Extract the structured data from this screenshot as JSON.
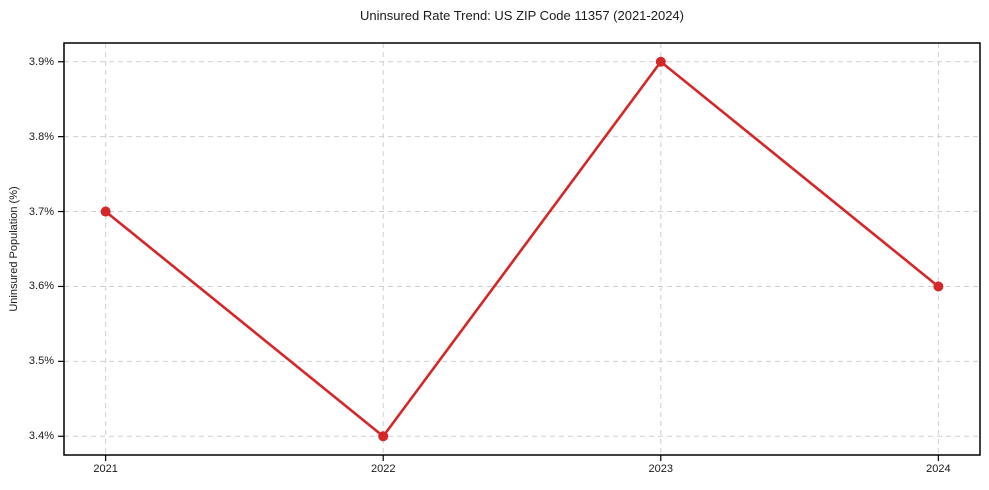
{
  "chart_data": {
    "type": "line",
    "title": "Uninsured Rate Trend: US ZIP Code 11357 (2021-2024)",
    "xlabel": "",
    "ylabel": "Uninsured Population (%)",
    "categories": [
      "2021",
      "2022",
      "2023",
      "2024"
    ],
    "series": [
      {
        "name": "Uninsured rate",
        "values": [
          3.7,
          3.4,
          3.9,
          3.6
        ],
        "color": "#d62728",
        "marker": "circle",
        "marker_radius": 5
      }
    ],
    "yticks": [
      {
        "value": 3.4,
        "label": "3.4%"
      },
      {
        "value": 3.5,
        "label": "3.5%"
      },
      {
        "value": 3.6,
        "label": "3.6%"
      },
      {
        "value": 3.7,
        "label": "3.7%"
      },
      {
        "value": 3.8,
        "label": "3.8%"
      },
      {
        "value": 3.9,
        "label": "3.9%"
      }
    ],
    "ylim": [
      3.375,
      3.925
    ],
    "xlim": [
      -0.15,
      3.15
    ],
    "grid": true,
    "legend": false,
    "colors": {
      "line": "#d62728",
      "grid": "#cfcfcf",
      "spine": "#000000",
      "tick": "#000000",
      "background": "#ffffff",
      "text": "#1a1a1a"
    }
  }
}
